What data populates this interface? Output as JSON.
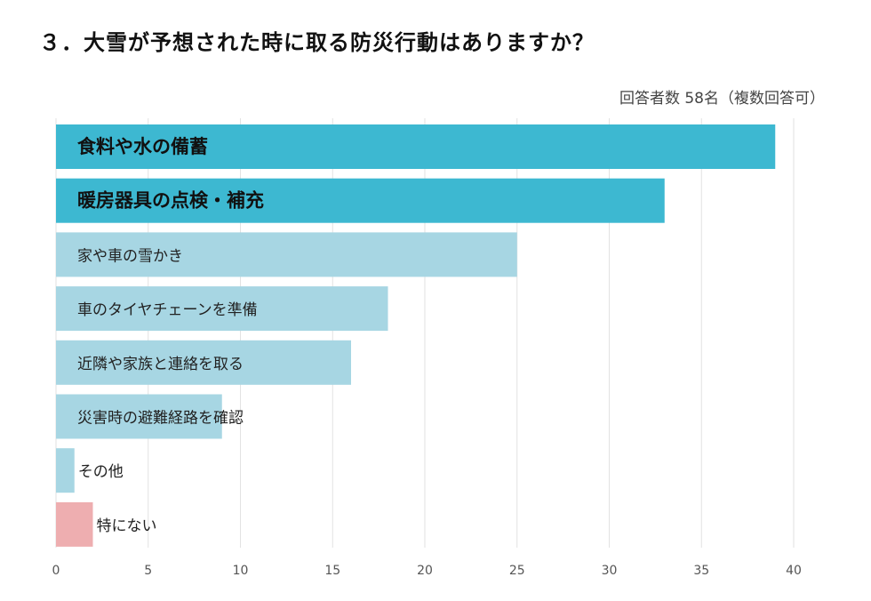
{
  "title": "３．大雪が予想された時に取る防災行動はありますか？",
  "note": "回答者数 58名（複数回答可）",
  "colors": {
    "top": "#3db8d1",
    "normal": "#a7d6e3",
    "none": "#eeaeb0",
    "grid": "#e2e2e2"
  },
  "chart_data": {
    "type": "bar",
    "orientation": "horizontal",
    "categories": [
      "食料や水の備蓄",
      "暖房器具の点検・補充",
      "家や車の雪かき",
      "車のタイヤチェーンを準備",
      "近隣や家族と連絡を取る",
      "災害時の避難経路を確認",
      "その他",
      "特にない"
    ],
    "values": [
      39,
      33,
      25,
      18,
      16,
      9,
      1,
      2
    ],
    "highlight": [
      true,
      true,
      false,
      false,
      false,
      false,
      false,
      false
    ],
    "xlim": [
      0,
      40
    ],
    "xticks": [
      0,
      5,
      10,
      15,
      20,
      25,
      30,
      35,
      40
    ],
    "grid": true
  }
}
